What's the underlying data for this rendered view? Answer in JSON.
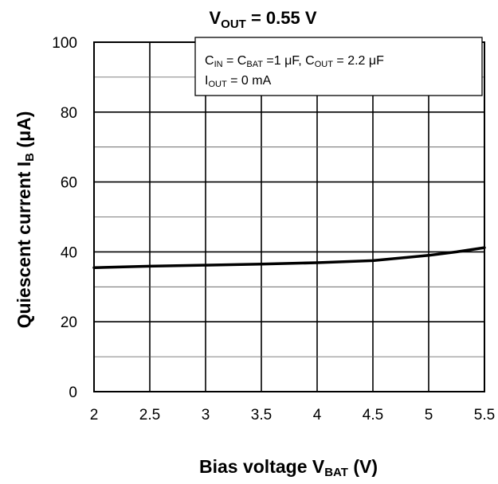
{
  "chart_data": {
    "type": "line",
    "title": {
      "main": "V",
      "sub": "OUT",
      "rest": " = 0.55 V"
    },
    "xlabel": {
      "main": "Bias voltage   V",
      "sub": "BAT",
      "rest": "   (V)"
    },
    "ylabel": {
      "main": "Quiescent current   I",
      "sub": "B",
      "rest": "   (μA)"
    },
    "xlim": [
      2,
      5.5
    ],
    "ylim": [
      0,
      100
    ],
    "x_ticks": [
      "2",
      "2.5",
      "3",
      "3.5",
      "4",
      "4.5",
      "5",
      "5.5"
    ],
    "y_ticks": [
      "0",
      "20",
      "40",
      "60",
      "80",
      "100"
    ],
    "grid": true,
    "annotation": {
      "line1": [
        {
          "t": "C"
        },
        {
          "t": "IN",
          "sub": true
        },
        {
          "t": " = C"
        },
        {
          "t": "BAT",
          "sub": true
        },
        {
          "t": " =1 μF, C"
        },
        {
          "t": "OUT",
          "sub": true
        },
        {
          "t": " = 2.2 μF"
        }
      ],
      "line2": [
        {
          "t": "I"
        },
        {
          "t": "OUT",
          "sub": true
        },
        {
          "t": " = 0 mA"
        }
      ]
    },
    "series": [
      {
        "x": [
          2.0,
          2.5,
          3.0,
          3.5,
          4.0,
          4.5,
          5.0,
          5.25,
          5.5
        ],
        "y": [
          35.5,
          35.9,
          36.2,
          36.5,
          36.9,
          37.5,
          39.0,
          40.0,
          41.2
        ]
      }
    ]
  }
}
